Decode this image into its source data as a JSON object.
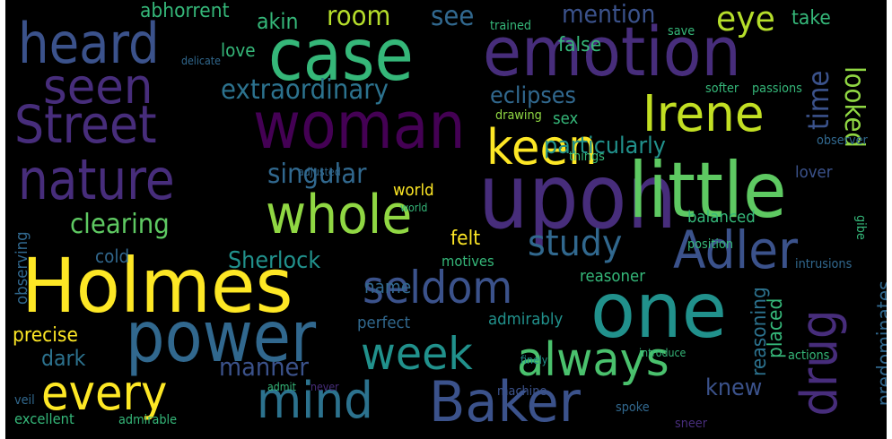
{
  "palette": {
    "background": "#000000",
    "dark_purple": "#440154",
    "purple": "#472d7b",
    "indigo": "#3b528b",
    "blue": "#31688e",
    "teal": "#21918c",
    "green": "#35b779",
    "light_green": "#90d743",
    "yellow": "#fde725"
  },
  "words": [
    {
      "text": "Holmes",
      "color": "#fde725"
    },
    {
      "text": "emotion",
      "color": "#472d7b"
    },
    {
      "text": "case",
      "color": "#35b779"
    },
    {
      "text": "woman",
      "color": "#440154"
    },
    {
      "text": "upon",
      "color": "#472d7b"
    },
    {
      "text": "little",
      "color": "#5ec962"
    },
    {
      "text": "one",
      "color": "#21918c"
    },
    {
      "text": "power",
      "color": "#31688e"
    },
    {
      "text": "heard",
      "color": "#3b528b"
    },
    {
      "text": "Street",
      "color": "#472d7b"
    },
    {
      "text": "nature",
      "color": "#472d7b"
    },
    {
      "text": "whole",
      "color": "#90d743"
    },
    {
      "text": "seen",
      "color": "#472d7b"
    },
    {
      "text": "Irene",
      "color": "#c2df23"
    },
    {
      "text": "keen",
      "color": "#fde725"
    },
    {
      "text": "Baker",
      "color": "#3b528b"
    },
    {
      "text": "mind",
      "color": "#2c728e"
    },
    {
      "text": "every",
      "color": "#fde725"
    },
    {
      "text": "always",
      "color": "#4ac16d"
    },
    {
      "text": "week",
      "color": "#21918c"
    },
    {
      "text": "seldom",
      "color": "#3b528b"
    },
    {
      "text": "drug",
      "color": "#472d7b"
    },
    {
      "text": "Adler",
      "color": "#3b528b"
    },
    {
      "text": "study",
      "color": "#31688e"
    },
    {
      "text": "extraordinary",
      "color": "#2c728e"
    },
    {
      "text": "clearing",
      "color": "#5ec962"
    },
    {
      "text": "singular",
      "color": "#31688e"
    },
    {
      "text": "looked",
      "color": "#90d743"
    },
    {
      "text": "time",
      "color": "#3b528b"
    },
    {
      "text": "room",
      "color": "#b5de2b"
    },
    {
      "text": "see",
      "color": "#31688e"
    },
    {
      "text": "mention",
      "color": "#3b528b"
    },
    {
      "text": "eye",
      "color": "#b5de2b"
    },
    {
      "text": "akin",
      "color": "#35b779"
    },
    {
      "text": "abhorrent",
      "color": "#35b779"
    },
    {
      "text": "take",
      "color": "#35b779"
    },
    {
      "text": "love",
      "color": "#35b779"
    },
    {
      "text": "false",
      "color": "#35b779"
    },
    {
      "text": "eclipses",
      "color": "#31688e"
    },
    {
      "text": "particularly",
      "color": "#21918c"
    },
    {
      "text": "Sherlock",
      "color": "#21918c"
    },
    {
      "text": "manner",
      "color": "#3b528b"
    },
    {
      "text": "predominates",
      "color": "#31688e"
    },
    {
      "text": "reasoning",
      "color": "#2c728e"
    },
    {
      "text": "placed",
      "color": "#35b779"
    },
    {
      "text": "balanced",
      "color": "#35b779"
    },
    {
      "text": "position",
      "color": "#35b779"
    },
    {
      "text": "knew",
      "color": "#3b528b"
    },
    {
      "text": "admirably",
      "color": "#21918c"
    },
    {
      "text": "perfect",
      "color": "#31688e"
    },
    {
      "text": "dark",
      "color": "#2c728e"
    },
    {
      "text": "cold",
      "color": "#31688e"
    },
    {
      "text": "name",
      "color": "#31688e"
    },
    {
      "text": "felt",
      "color": "#fde725"
    },
    {
      "text": "world",
      "color": "#fde725"
    },
    {
      "text": "precise",
      "color": "#fde725"
    },
    {
      "text": "observing",
      "color": "#31688e"
    },
    {
      "text": "lover",
      "color": "#3b528b"
    },
    {
      "text": "observer",
      "color": "#31688e"
    },
    {
      "text": "sex",
      "color": "#35b779"
    },
    {
      "text": "drawing",
      "color": "#90d743"
    },
    {
      "text": "passions",
      "color": "#35b779"
    },
    {
      "text": "softer",
      "color": "#35b779"
    },
    {
      "text": "trained",
      "color": "#35b779"
    },
    {
      "text": "save",
      "color": "#35b779"
    },
    {
      "text": "motives",
      "color": "#35b779"
    },
    {
      "text": "reasoner",
      "color": "#35b779"
    },
    {
      "text": "intrusions",
      "color": "#31688e"
    },
    {
      "text": "gibe",
      "color": "#35b779"
    },
    {
      "text": "things",
      "color": "#35b779"
    },
    {
      "text": "machine",
      "color": "#3b528b"
    },
    {
      "text": "sneer",
      "color": "#472d7b"
    },
    {
      "text": "actions",
      "color": "#35b779"
    },
    {
      "text": "spoke",
      "color": "#31688e"
    },
    {
      "text": "excellent",
      "color": "#35b779"
    },
    {
      "text": "admirable",
      "color": "#35b779"
    },
    {
      "text": "admit",
      "color": "#35b779"
    },
    {
      "text": "never",
      "color": "#472d7b"
    },
    {
      "text": "veil",
      "color": "#31688e"
    },
    {
      "text": "finely",
      "color": "#21918c"
    },
    {
      "text": "introduce",
      "color": "#35b779"
    },
    {
      "text": "delicate",
      "color": "#31688e"
    },
    {
      "text": "adjusted",
      "color": "#31688e"
    },
    {
      "text": "world",
      "color": "#35b779"
    }
  ]
}
